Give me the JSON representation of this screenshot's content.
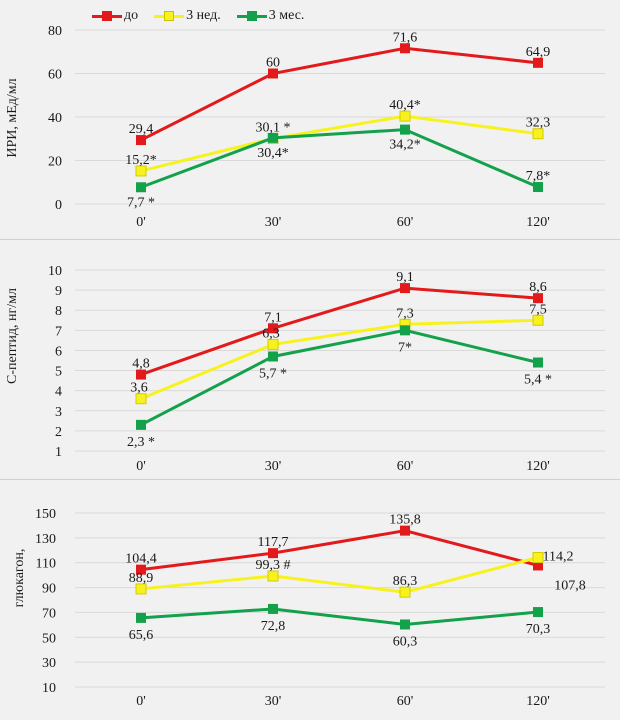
{
  "legend": [
    {
      "name": "до",
      "color": "#e31a1c"
    },
    {
      "name": "3 нед.",
      "color": "#f7f21e"
    },
    {
      "name": "3 мес.",
      "color": "#13a14b"
    }
  ],
  "chart_data": [
    {
      "type": "line",
      "title": "",
      "ylabel": "ИРИ, мЕд/мл",
      "xlabel": "",
      "categories": [
        "0'",
        "30'",
        "60'",
        "120'"
      ],
      "ylim": [
        0,
        80
      ],
      "yticks": [
        0,
        20,
        40,
        60,
        80
      ],
      "grid": true,
      "legend_position": "top-left",
      "series": [
        {
          "name": "до",
          "color": "#e31a1c",
          "values": [
            29.4,
            60,
            71.6,
            64.9
          ],
          "labels": [
            "29,4",
            "60",
            "71,6",
            "64,9"
          ]
        },
        {
          "name": "3 нед.",
          "color": "#f7f21e",
          "values": [
            15.2,
            30.1,
            40.4,
            32.3
          ],
          "labels": [
            "15,2*",
            "30,1 *",
            "40,4*",
            "32,3"
          ]
        },
        {
          "name": "3 мес.",
          "color": "#13a14b",
          "values": [
            7.7,
            30.4,
            34.2,
            7.8
          ],
          "labels": [
            "7,7 *",
            "30,4*",
            "34,2*",
            "7,8*"
          ]
        }
      ]
    },
    {
      "type": "line",
      "title": "",
      "ylabel": "С-пептид, нг/мл",
      "xlabel": "",
      "categories": [
        "0'",
        "30'",
        "60'",
        "120'"
      ],
      "ylim": [
        1,
        10
      ],
      "yticks": [
        1,
        2,
        3,
        4,
        5,
        6,
        7,
        8,
        9,
        10
      ],
      "grid": true,
      "series": [
        {
          "name": "до",
          "color": "#e31a1c",
          "values": [
            4.8,
            7.1,
            9.1,
            8.6
          ],
          "labels": [
            "4,8",
            "7,1",
            "9,1",
            "8,6"
          ]
        },
        {
          "name": "3 нед.",
          "color": "#f7f21e",
          "values": [
            3.6,
            6.3,
            7.3,
            7.5
          ],
          "labels": [
            "3,6",
            "6,3",
            "7,3",
            "7,5"
          ]
        },
        {
          "name": "3 мес.",
          "color": "#13a14b",
          "values": [
            2.3,
            5.7,
            7,
            5.4
          ],
          "labels": [
            "2,3 *",
            "5,7 *",
            "7*",
            "5,4 *"
          ]
        }
      ]
    },
    {
      "type": "line",
      "title": "",
      "ylabel": "глюкагон,",
      "xlabel": "",
      "categories": [
        "0'",
        "30'",
        "60'",
        "120'"
      ],
      "ylim": [
        10,
        150
      ],
      "yticks": [
        10,
        30,
        50,
        70,
        90,
        110,
        130,
        150
      ],
      "grid": true,
      "series": [
        {
          "name": "до",
          "color": "#e31a1c",
          "values": [
            104.4,
            117.7,
            135.8,
            107.8
          ],
          "labels": [
            "104,4",
            "117,7",
            "135,8",
            "107,8"
          ]
        },
        {
          "name": "3 нед.",
          "color": "#f7f21e",
          "values": [
            88.9,
            99.3,
            86.3,
            114.2
          ],
          "labels": [
            "88,9",
            "99,3 #",
            "86,3",
            "114,2"
          ]
        },
        {
          "name": "3 мес.",
          "color": "#13a14b",
          "values": [
            65.6,
            72.8,
            60.3,
            70.3
          ],
          "labels": [
            "65,6",
            "72,8",
            "60,3",
            "70,3"
          ]
        }
      ]
    }
  ]
}
